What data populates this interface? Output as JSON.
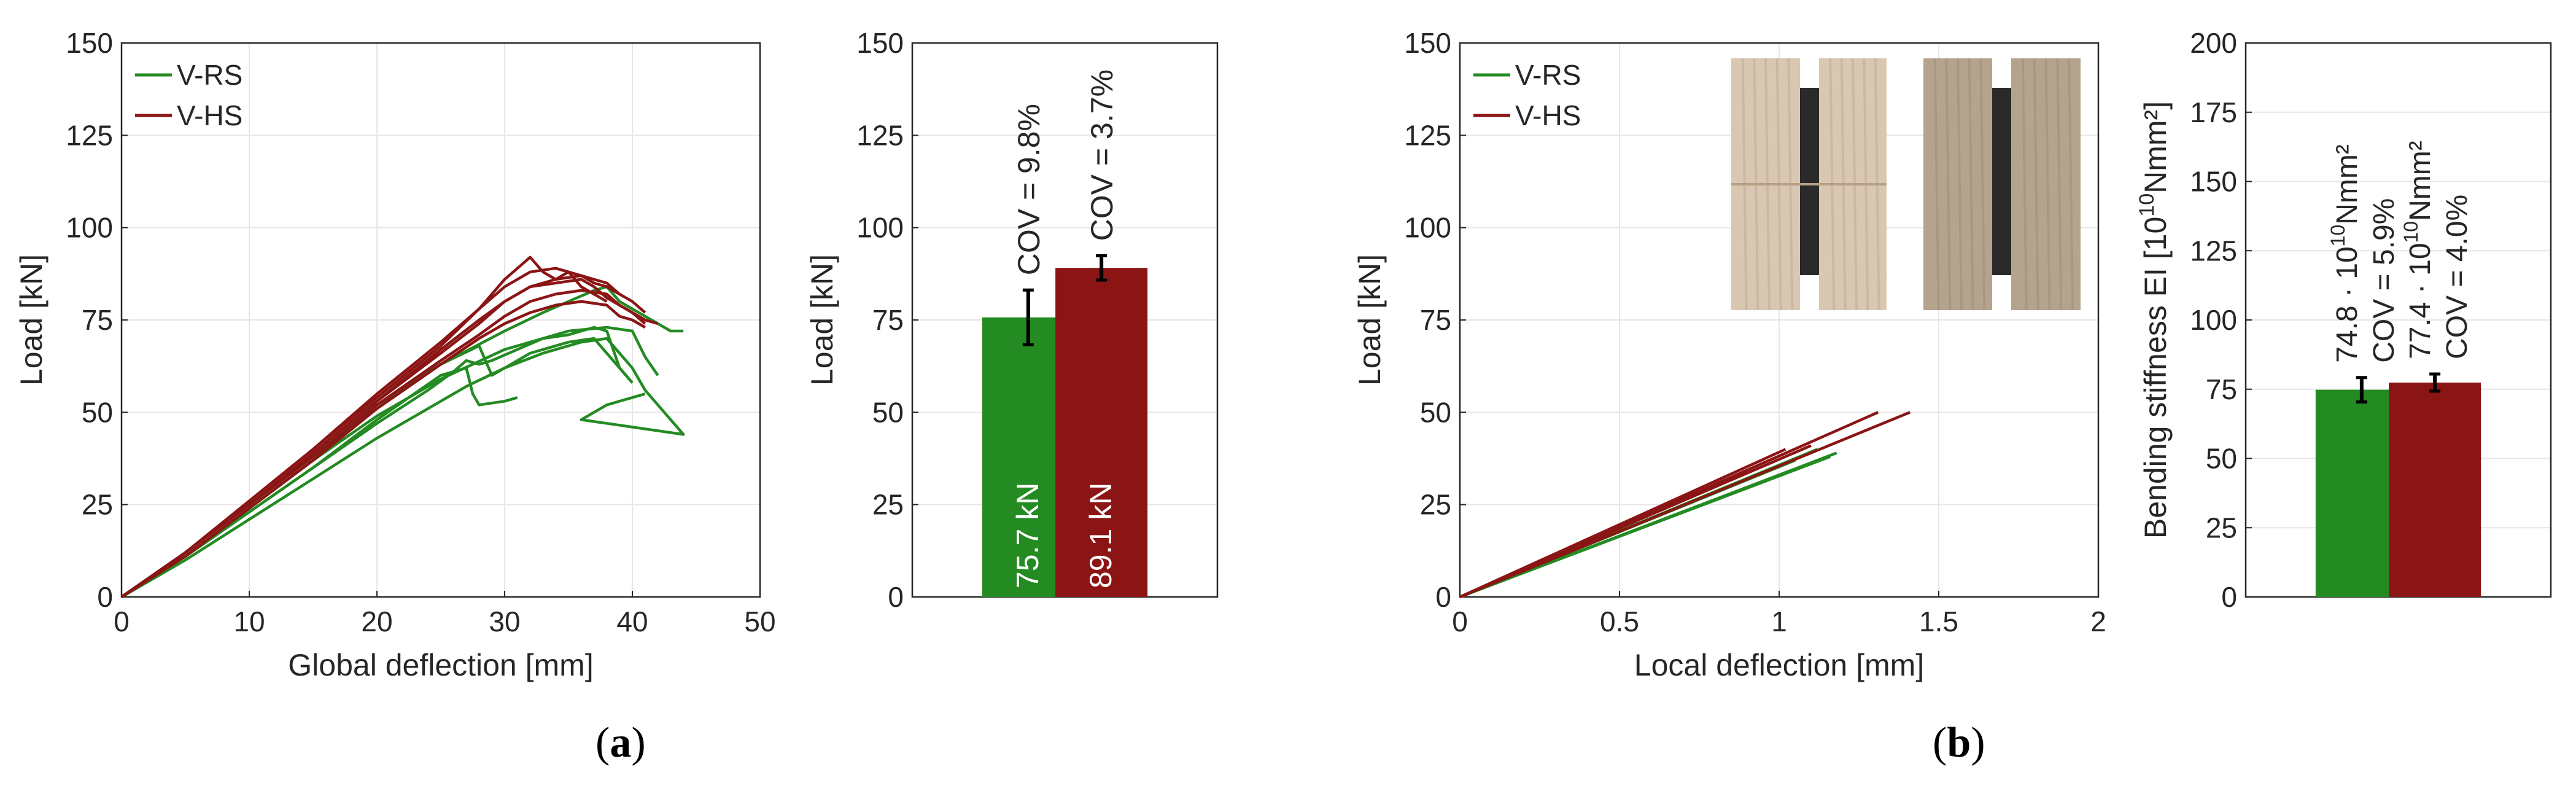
{
  "colors": {
    "rs": "#238b22",
    "hs": "#8b1414",
    "axis": "#262626",
    "grid": "#e6e6e6",
    "photo_wood_a": "#d9c7b1",
    "photo_wood_b": "#b5a48d",
    "photo_dark": "#2a2a2a"
  },
  "panel_labels": {
    "a": "a",
    "b": "b"
  },
  "chart_data": [
    {
      "id": "a-left",
      "type": "line",
      "xlabel": "Global deflection [mm]",
      "ylabel": "Load [kN]",
      "xlim": [
        0,
        50
      ],
      "ylim": [
        0,
        150
      ],
      "xticks": [
        "0",
        "10",
        "20",
        "30",
        "40",
        "50"
      ],
      "yticks": [
        "0",
        "25",
        "50",
        "75",
        "100",
        "125",
        "150"
      ],
      "grid": true,
      "legend": {
        "position": "top-left",
        "entries": [
          "V-RS",
          "V-HS"
        ]
      },
      "series": [
        {
          "name": "V-RS",
          "color_key": "rs",
          "curves": [
            [
              [
                0,
                0
              ],
              [
                5,
                10
              ],
              [
                10,
                21
              ],
              [
                15,
                32
              ],
              [
                20,
                43
              ],
              [
                24,
                51
              ],
              [
                27,
                57
              ],
              [
                30,
                62
              ],
              [
                33,
                66
              ],
              [
                36,
                69
              ],
              [
                38,
                70
              ],
              [
                39,
                66
              ],
              [
                40,
                62
              ],
              [
                41,
                56
              ],
              [
                42,
                52
              ],
              [
                43,
                48
              ],
              [
                44,
                44
              ],
              [
                36,
                48
              ],
              [
                38,
                52
              ],
              [
                40,
                54
              ],
              [
                41,
                55
              ]
            ],
            [
              [
                0,
                0
              ],
              [
                5,
                11
              ],
              [
                10,
                23
              ],
              [
                15,
                35
              ],
              [
                20,
                47
              ],
              [
                24,
                56
              ],
              [
                26,
                61
              ],
              [
                27,
                64
              ],
              [
                28,
                63
              ],
              [
                29,
                64
              ],
              [
                31,
                67
              ],
              [
                33,
                70
              ],
              [
                35,
                71
              ],
              [
                37,
                73
              ],
              [
                38,
                72
              ],
              [
                39,
                62
              ],
              [
                40,
                58
              ]
            ],
            [
              [
                0,
                0
              ],
              [
                5,
                12
              ],
              [
                10,
                25
              ],
              [
                15,
                38
              ],
              [
                20,
                52
              ],
              [
                25,
                63
              ],
              [
                28,
                68
              ],
              [
                29,
                60
              ],
              [
                30,
                62
              ],
              [
                32,
                66
              ],
              [
                35,
                69
              ],
              [
                37,
                70
              ],
              [
                38,
                66
              ],
              [
                39,
                62
              ],
              [
                40,
                58
              ]
            ],
            [
              [
                0,
                0
              ],
              [
                5,
                11
              ],
              [
                10,
                23
              ],
              [
                15,
                35
              ],
              [
                20,
                48
              ],
              [
                25,
                60
              ],
              [
                27,
                62
              ],
              [
                27.5,
                55
              ],
              [
                28,
                52
              ],
              [
                30,
                53
              ],
              [
                31,
                54
              ]
            ],
            [
              [
                0,
                0
              ],
              [
                5,
                12
              ],
              [
                10,
                25
              ],
              [
                15,
                38
              ],
              [
                20,
                51
              ],
              [
                25,
                63
              ],
              [
                30,
                72
              ],
              [
                33,
                77
              ],
              [
                35,
                80
              ],
              [
                37,
                83
              ],
              [
                38,
                84
              ],
              [
                39,
                80
              ],
              [
                40,
                78
              ],
              [
                41,
                76
              ],
              [
                42,
                74
              ],
              [
                43,
                72
              ],
              [
                44,
                72
              ]
            ],
            [
              [
                0,
                0
              ],
              [
                5,
                11
              ],
              [
                10,
                24
              ],
              [
                15,
                37
              ],
              [
                20,
                49
              ],
              [
                25,
                59
              ],
              [
                30,
                67
              ],
              [
                35,
                72
              ],
              [
                38,
                73
              ],
              [
                40,
                72
              ],
              [
                41,
                65
              ],
              [
                42,
                60
              ]
            ]
          ]
        },
        {
          "name": "V-HS",
          "color_key": "hs",
          "curves": [
            [
              [
                0,
                0
              ],
              [
                5,
                12
              ],
              [
                10,
                26
              ],
              [
                15,
                40
              ],
              [
                20,
                54
              ],
              [
                25,
                68
              ],
              [
                28,
                78
              ],
              [
                30,
                86
              ],
              [
                32,
                92
              ],
              [
                33,
                88
              ],
              [
                34,
                86
              ],
              [
                35,
                88
              ],
              [
                36,
                84
              ],
              [
                37,
                82
              ],
              [
                38,
                80
              ]
            ],
            [
              [
                0,
                0
              ],
              [
                5,
                12
              ],
              [
                10,
                25
              ],
              [
                15,
                39
              ],
              [
                20,
                53
              ],
              [
                25,
                66
              ],
              [
                28,
                74
              ],
              [
                30,
                80
              ],
              [
                32,
                84
              ],
              [
                34,
                86
              ],
              [
                36,
                87
              ],
              [
                37,
                86
              ],
              [
                38,
                85
              ],
              [
                39,
                82
              ],
              [
                40,
                80
              ],
              [
                41,
                77
              ]
            ],
            [
              [
                0,
                0
              ],
              [
                5,
                12
              ],
              [
                10,
                25
              ],
              [
                15,
                38
              ],
              [
                20,
                52
              ],
              [
                25,
                64
              ],
              [
                28,
                71
              ],
              [
                30,
                76
              ],
              [
                32,
                80
              ],
              [
                34,
                82
              ],
              [
                36,
                83
              ],
              [
                38,
                82
              ],
              [
                39,
                79
              ],
              [
                40,
                77
              ],
              [
                41,
                75
              ],
              [
                42,
                74
              ]
            ],
            [
              [
                0,
                0
              ],
              [
                5,
                12
              ],
              [
                10,
                26
              ],
              [
                15,
                40
              ],
              [
                20,
                55
              ],
              [
                25,
                69
              ],
              [
                28,
                78
              ],
              [
                30,
                84
              ],
              [
                32,
                88
              ],
              [
                34,
                89
              ],
              [
                36,
                87
              ],
              [
                37,
                85
              ],
              [
                38,
                84
              ],
              [
                39,
                82
              ]
            ],
            [
              [
                0,
                0
              ],
              [
                5,
                11
              ],
              [
                10,
                24
              ],
              [
                15,
                37
              ],
              [
                20,
                51
              ],
              [
                25,
                63
              ],
              [
                28,
                70
              ],
              [
                30,
                74
              ],
              [
                32,
                77
              ],
              [
                34,
                79
              ],
              [
                36,
                80
              ],
              [
                38,
                79
              ],
              [
                39,
                76
              ],
              [
                40,
                75
              ],
              [
                41,
                73
              ]
            ],
            [
              [
                0,
                0
              ],
              [
                5,
                12
              ],
              [
                10,
                25
              ],
              [
                15,
                39
              ],
              [
                20,
                53
              ],
              [
                25,
                67
              ],
              [
                28,
                75
              ],
              [
                30,
                80
              ],
              [
                32,
                84
              ],
              [
                34,
                85
              ],
              [
                36,
                86
              ],
              [
                37,
                84
              ],
              [
                38,
                81
              ],
              [
                40,
                77
              ],
              [
                41,
                74
              ]
            ]
          ]
        }
      ]
    },
    {
      "id": "a-right",
      "type": "bar",
      "ylabel": "Load [kN]",
      "ylim": [
        0,
        150
      ],
      "yticks": [
        "0",
        "25",
        "50",
        "75",
        "100",
        "125",
        "150"
      ],
      "grid": true,
      "categories": [
        "V-RS",
        "V-HS"
      ],
      "values": [
        75.7,
        89.1
      ],
      "errors": [
        7.4,
        3.3
      ],
      "bar_labels": [
        "75.7 kN",
        "89.1 kN"
      ],
      "annotations": [
        [
          "COV = 9.8%"
        ],
        [
          "COV = 3.7%"
        ]
      ]
    },
    {
      "id": "b-left",
      "type": "line",
      "xlabel": "Local deflection [mm]",
      "ylabel": "Load [kN]",
      "xlim": [
        0,
        2
      ],
      "ylim": [
        0,
        150
      ],
      "xticks": [
        "0",
        "0.5",
        "1",
        "1.5",
        "2"
      ],
      "yticks": [
        "0",
        "25",
        "50",
        "75",
        "100",
        "125",
        "150"
      ],
      "grid": true,
      "legend": {
        "position": "top-left",
        "entries": [
          "V-RS",
          "V-HS"
        ]
      },
      "series": [
        {
          "name": "V-RS",
          "color_key": "rs",
          "curves": [
            [
              [
                0,
                0
              ],
              [
                1.18,
                39
              ]
            ],
            [
              [
                0,
                0
              ],
              [
                1.12,
                40
              ]
            ],
            [
              [
                0,
                0
              ],
              [
                1.16,
                38
              ]
            ],
            [
              [
                0,
                0
              ],
              [
                1.05,
                37
              ]
            ]
          ]
        },
        {
          "name": "V-HS",
          "color_key": "hs",
          "curves": [
            [
              [
                0,
                0
              ],
              [
                1.02,
                40
              ]
            ],
            [
              [
                0,
                0
              ],
              [
                1.31,
                50
              ]
            ],
            [
              [
                0,
                0
              ],
              [
                1.41,
                50
              ]
            ],
            [
              [
                0,
                0
              ],
              [
                1.1,
                41
              ]
            ]
          ]
        }
      ]
    },
    {
      "id": "b-right",
      "type": "bar",
      "ylabel": "Bending stiffness EI [10",
      "ylabel_sup": "10",
      "ylabel_end": "Nmm²]",
      "ylim": [
        0,
        200
      ],
      "yticks": [
        "0",
        "25",
        "50",
        "75",
        "100",
        "125",
        "150",
        "175",
        "200"
      ],
      "grid": true,
      "categories": [
        "V-RS",
        "V-HS"
      ],
      "values": [
        74.8,
        77.4
      ],
      "errors": [
        4.4,
        3.1
      ],
      "annotations": [
        {
          "line1": "74.8 · 10",
          "sup": "10",
          "unit": "Nmm²",
          "line2": "COV = 5.9%"
        },
        {
          "line1": "77.4 · 10",
          "sup": "10",
          "unit": "Nmm²",
          "line2": "COV = 4.0%"
        }
      ]
    }
  ]
}
